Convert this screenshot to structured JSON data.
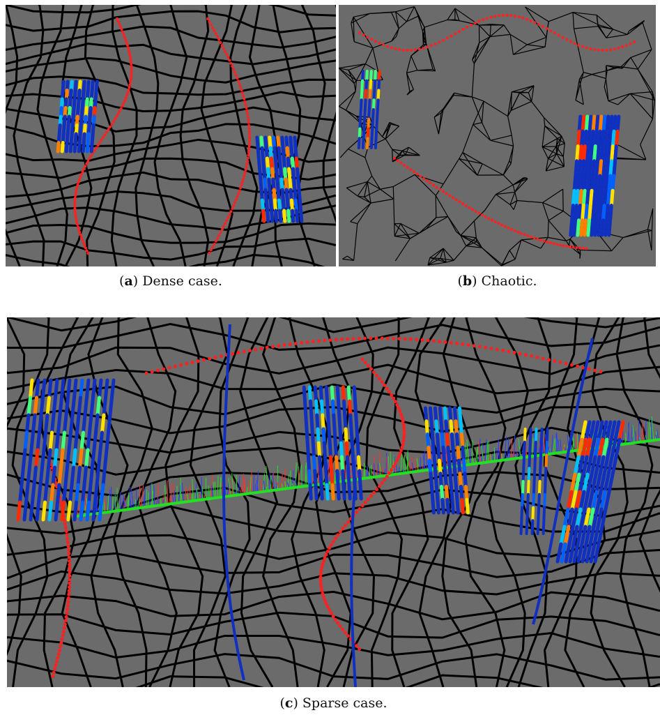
{
  "figure": {
    "panels": [
      {
        "id": "a",
        "label_letter": "a",
        "caption_text": "Dense case."
      },
      {
        "id": "b",
        "label_letter": "b",
        "caption_text": "Chaotic."
      },
      {
        "id": "c",
        "label_letter": "c",
        "caption_text": "Sparse case."
      }
    ]
  },
  "colors": {
    "background": "#6b6b6b",
    "mesh": "#000000",
    "contour_dots": "#ff2020",
    "streamline_low": "#1030c0",
    "streamline_high": "#ff2a00",
    "centerline": "#22e022"
  }
}
